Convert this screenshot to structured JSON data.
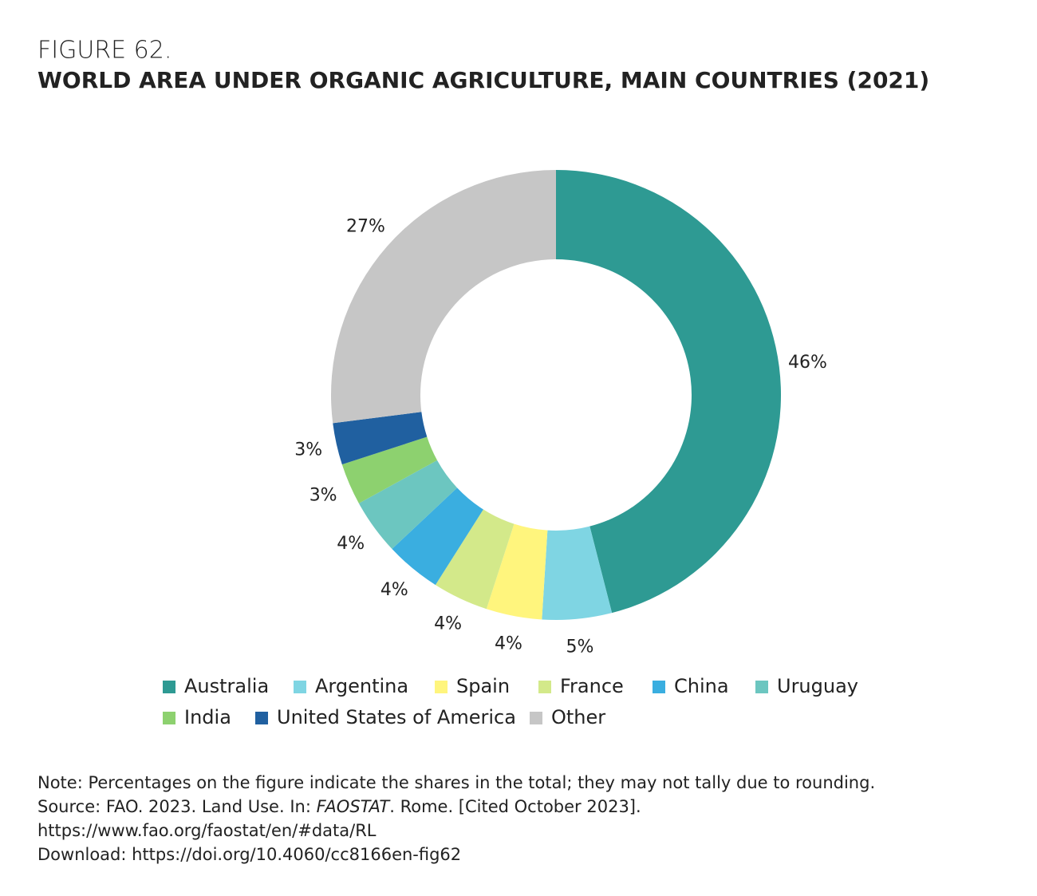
{
  "chart_data": {
    "type": "pie",
    "figure_label": "FIGURE 62.",
    "title": "WORLD AREA UNDER ORGANIC AGRICULTURE, MAIN COUNTRIES (2021)",
    "categories": [
      "Australia",
      "Argentina",
      "Spain",
      "France",
      "China",
      "Uruguay",
      "India",
      "United States of America",
      "Other"
    ],
    "values": [
      46,
      5,
      4,
      4,
      4,
      4,
      3,
      3,
      27
    ],
    "value_labels": [
      "46%",
      "5%",
      "4%",
      "4%",
      "4%",
      "4%",
      "3%",
      "3%",
      "27%"
    ],
    "colors": [
      "#2e9a93",
      "#7fd5e3",
      "#fff57d",
      "#d3e98a",
      "#3aaee0",
      "#6cc6c0",
      "#8dd16f",
      "#2060a0",
      "#c6c6c6"
    ],
    "legend": "bottom",
    "note": "Note: Percentages on the figure indicate the shares in the total; they may not tally due to rounding.",
    "source": {
      "before": "Source: FAO. 2023. Land Use. In: ",
      "italic": "FAOSTAT",
      "after": ". Rome. [Cited October 2023]."
    },
    "url": "https://www.fao.org/faostat/en/#data/RL",
    "download": "Download: https://doi.org/10.4060/cc8166en-fig62"
  }
}
